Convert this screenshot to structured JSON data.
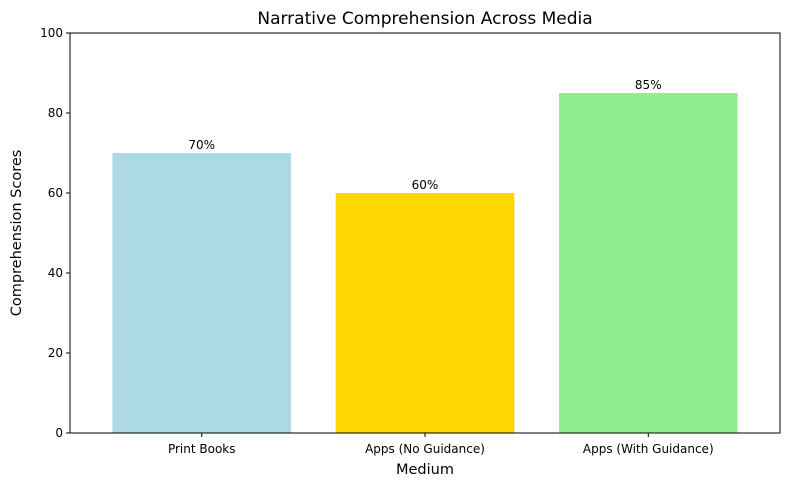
{
  "chart_data": {
    "type": "bar",
    "title": "Narrative Comprehension Across Media",
    "xlabel": "Medium",
    "ylabel": "Comprehension Scores",
    "categories": [
      "Print Books",
      "Apps (No Guidance)",
      "Apps (With Guidance)"
    ],
    "values": [
      70,
      60,
      85
    ],
    "data_labels": [
      "70%",
      "60%",
      "85%"
    ],
    "colors": [
      "#add8e6",
      "#ffd700",
      "#90ee90"
    ],
    "ylim": [
      0,
      100
    ],
    "yticks": [
      "0",
      "20",
      "40",
      "60",
      "80",
      "100"
    ],
    "grid": false,
    "legend": "none"
  }
}
